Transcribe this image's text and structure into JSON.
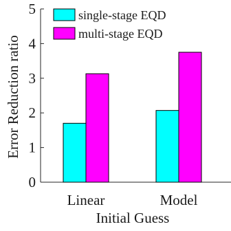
{
  "chart_data": {
    "type": "bar",
    "categories": [
      "Linear",
      "Model"
    ],
    "series": [
      {
        "name": "single-stage EQD",
        "values": [
          1.7,
          2.07
        ],
        "color": "#00ffff"
      },
      {
        "name": "multi-stage EQD",
        "values": [
          3.13,
          3.75
        ],
        "color": "#ff00ff"
      }
    ],
    "xlabel": "Initial Guess",
    "ylabel": "Error Reduction ratio",
    "ylim": [
      0,
      5
    ],
    "yticks": [
      0,
      1,
      2,
      3,
      4,
      5
    ],
    "grid": false,
    "legend_position": "top-left",
    "edge_color": "#000000"
  }
}
